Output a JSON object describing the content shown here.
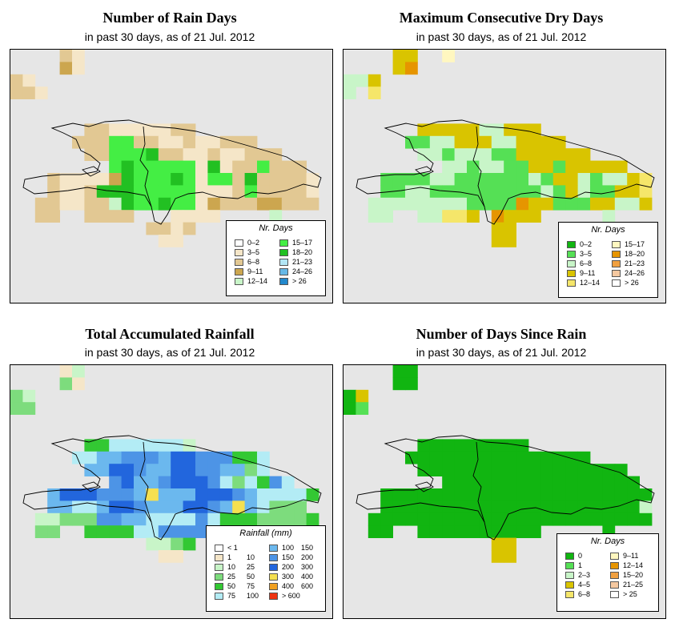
{
  "panels": [
    {
      "title": "Number of Rain Days",
      "subtitle": "in past 30 days, as of  21 Jul. 2012",
      "legend": {
        "title": "Nr. Days",
        "items": [
          {
            "label": "0–2",
            "color": "#ffffff"
          },
          {
            "label": "3–5",
            "color": "#f5e6c8"
          },
          {
            "label": "6–8",
            "color": "#e2c893"
          },
          {
            "label": "9–11",
            "color": "#cca64f"
          },
          {
            "label": "12–14",
            "color": "#c8f5c8"
          },
          {
            "label": "15–17",
            "color": "#44ee44"
          },
          {
            "label": "18–20",
            "color": "#22c022"
          },
          {
            "label": "21–23",
            "color": "#b3e6f5"
          },
          {
            "label": "24–26",
            "color": "#66b8e6"
          },
          {
            "label": "> 26",
            "color": "#2288cc"
          }
        ]
      }
    },
    {
      "title": "Maximum Consecutive Dry Days",
      "subtitle": "in past 30 days, as of  21 Jul. 2012",
      "legend": {
        "title": "Nr. Days",
        "items": [
          {
            "label": "0–2",
            "color": "#11b511"
          },
          {
            "label": "3–5",
            "color": "#55e055"
          },
          {
            "label": "6–8",
            "color": "#c8f5c8"
          },
          {
            "label": "9–11",
            "color": "#d9c400"
          },
          {
            "label": "12–14",
            "color": "#f5e66a"
          },
          {
            "label": "15–17",
            "color": "#fff7c0"
          },
          {
            "label": "18–20",
            "color": "#e69500"
          },
          {
            "label": "21–23",
            "color": "#f0a040"
          },
          {
            "label": "24–26",
            "color": "#f5c8a0"
          },
          {
            "label": "> 26",
            "color": "#ffffff"
          }
        ]
      }
    },
    {
      "title": "Total Accumulated Rainfall",
      "subtitle": "in past 30 days, as of  21 Jul. 2012",
      "legend": {
        "title": "Rainfall (mm)",
        "items": [
          {
            "label": "< 1",
            "label2": "",
            "color": "#ffffff"
          },
          {
            "label": "1",
            "label2": "10",
            "color": "#f5e6c8"
          },
          {
            "label": "10",
            "label2": "25",
            "color": "#c8f5c8"
          },
          {
            "label": "25",
            "label2": "50",
            "color": "#7ddc7d"
          },
          {
            "label": "50",
            "label2": "75",
            "color": "#33c833"
          },
          {
            "label": "75",
            "label2": "100",
            "color": "#b3ecf5"
          },
          {
            "label": "100",
            "label2": "150",
            "color": "#6bb8ee"
          },
          {
            "label": "150",
            "label2": "200",
            "color": "#4d94e6"
          },
          {
            "label": "200",
            "label2": "300",
            "color": "#2266dd"
          },
          {
            "label": "300",
            "label2": "400",
            "color": "#f5e050"
          },
          {
            "label": "400",
            "label2": "600",
            "color": "#f0a020"
          },
          {
            "label": "> 600",
            "label2": "",
            "color": "#ee3311"
          }
        ]
      }
    },
    {
      "title": "Number of Days Since Rain",
      "subtitle": "in past 30 days, as of  21 Jul. 2012",
      "legend": {
        "title": "Nr. Days",
        "items": [
          {
            "label": "0",
            "color": "#11b511"
          },
          {
            "label": "1",
            "color": "#55e055"
          },
          {
            "label": "2–3",
            "color": "#c8f5c8"
          },
          {
            "label": "4–5",
            "color": "#d9c400"
          },
          {
            "label": "6–8",
            "color": "#f5e66a"
          },
          {
            "label": "9–11",
            "color": "#fff7c0"
          },
          {
            "label": "12–14",
            "color": "#e69500"
          },
          {
            "label": "15–20",
            "color": "#f0a040"
          },
          {
            "label": "21–25",
            "color": "#f5c8a0"
          },
          {
            "label": "> 25",
            "color": "#ffffff"
          }
        ]
      }
    }
  ],
  "grids": [
    {
      "rows": [
        "....ab....................",
        "....cb....................",
        "ab........................",
        "aab.......................",
        "..........................",
        "..........................",
        "......aabbbbbaa...........",
        ".....aaaeeaabbabbaaa......",
        "......aaeeefaabbabbaaa....",
        "........efeeeeebfbaaeaaa..",
        "...abbbbcfeeefebeeafaaaab.",
        "...abbafffeeeeebbbaeaaaab.",
        "..aabbaadfeefeebcaaaccaaa.",
        "..aa..aaaa...bbbb....d....",
        "...........aaba.......d...",
        "............bb............"
      ],
      "map": {
        "a": 2,
        "b": 1,
        "c": 3,
        "d": 4,
        "e": 5,
        "f": 6
      }
    },
    {
      "rows": [
        "....dd..f.................",
        "....dg....................",
        "ccd.......................",
        "c.e.......................",
        "..........................",
        "..........................",
        "......dddddccddd..........",
        ".....bbccdddccdddd........",
        "......ccbcccbbdddddd......",
        "........ccbccbbddbddddd...",
        "...bbbbccbbbbbbcbddcbccde.",
        "...bbccbbbbbbbbbcbdcbbdde.",
        "..ccccccccbbbbgddbbbddccd.",
        "..cc..cceed.gddd.....c....",
        "............dd.........c..",
        "............dd............"
      ],
      "map": {
        "a": 0,
        "b": 1,
        "c": 2,
        "d": 3,
        "e": 4,
        "f": 5,
        "g": 6
      }
    },
    {
      "rows": [
        "....bc....................",
        "....db....................",
        "dc........................",
        "dd........................",
        "..........................",
        "..........................",
        "......eeffffffc...........",
        ".....ffgghhhgiihhheef.....",
        "......ggiihggiihhggdf.....",
        "........higghiiihfdfehf...",
        "...giiihhhgjgggiiihgffffe.",
        "...ggffgiihgggiihgjgfddd..",
        "..ccdddhhggffffhfeeedddde.",
        "..dd..eeeeffhhhhd....c....",
        "...........ccde.......b...",
        "............bb............"
      ],
      "map": {
        "a": 0,
        "b": 1,
        "c": 2,
        "d": 3,
        "e": 4,
        "f": 5,
        "g": 6,
        "h": 7,
        "i": 8,
        "j": 9
      }
    },
    {
      "rows": [
        "....aa....................",
        "....aa....................",
        "ad........................",
        "ab........................",
        "..........................",
        "..........................",
        "......aaaaaaaaa...........",
        ".....aaaaaaaaaaaaaaa......",
        "......aaaaaaaaaaaaaaaaa...",
        "........aaaaaaaaaaaaaaaa..",
        "...aaaaaaaaaaaaaaaaaaaaaa.",
        "...aaaaaaaaaaaaaaaaaaaaac.",
        "..aaaaaaaaaaaaaaaaaaaaaaa.",
        "..aa..aaaaaaaaaa.....a....",
        "............dd............",
        "............dd............"
      ],
      "map": {
        "a": 0,
        "b": 1,
        "c": 2,
        "d": 3
      }
    }
  ]
}
